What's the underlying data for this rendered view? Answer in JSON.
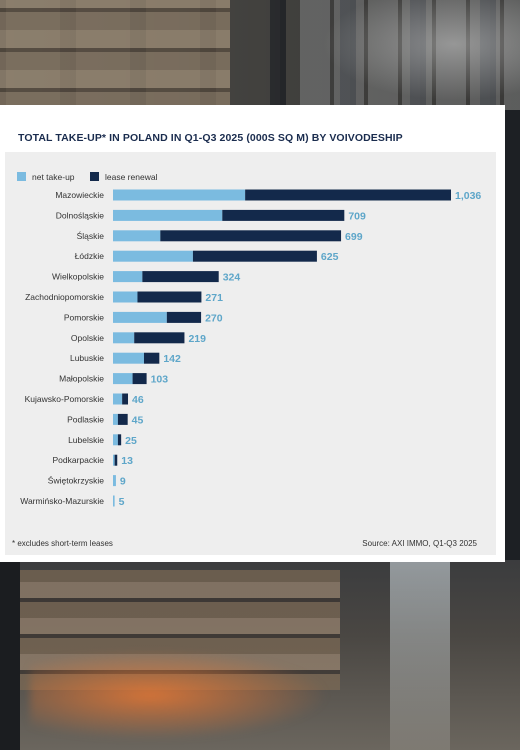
{
  "chart_data": {
    "type": "bar",
    "orientation": "horizontal",
    "stacked": true,
    "title": "TOTAL TAKE-UP* IN POLAND IN Q1-Q3 2025 (000S SQ M) BY VOIVODESHIP",
    "categories": [
      "Mazowieckie",
      "Dolnośląskie",
      "Śląskie",
      "Łódzkie",
      "Wielkopolskie",
      "Zachodniopomorskie",
      "Pomorskie",
      "Opolskie",
      "Lubuskie",
      "Małopolskie",
      "Kujawsko-Pomorskie",
      "Podlaskie",
      "Lubelskie",
      "Podkarpackie",
      "Świętokrzyskie",
      "Warmińsko-Mazurskie"
    ],
    "series": [
      {
        "name": "net take-up",
        "color": "#7bbbe0",
        "values": [
          405,
          335,
          145,
          245,
          90,
          75,
          165,
          65,
          95,
          60,
          28,
          15,
          15,
          5,
          9,
          5
        ]
      },
      {
        "name": "lease renewal",
        "color": "#13294b",
        "values": [
          631,
          374,
          554,
          380,
          234,
          196,
          105,
          154,
          47,
          43,
          18,
          30,
          10,
          8,
          0,
          0
        ]
      }
    ],
    "totals": [
      "1,036",
      "709",
      "699",
      "625",
      "324",
      "271",
      "270",
      "219",
      "142",
      "103",
      "46",
      "45",
      "25",
      "13",
      "9",
      "5"
    ],
    "total_label_color": "#5ea6c9",
    "xlim": [
      0,
      1036
    ],
    "grid": false,
    "legend_position": "top-left"
  },
  "footnote": "* excludes short-term leases",
  "source": "Source: AXI IMMO, Q1-Q3 2025"
}
